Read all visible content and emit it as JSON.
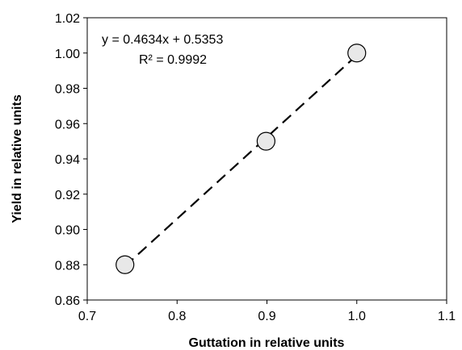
{
  "chart_data": {
    "type": "scatter",
    "xlabel": "Guttation in relative units",
    "ylabel": "Yield in relative units",
    "xlim": [
      0.7,
      1.1
    ],
    "ylim": [
      0.86,
      1.02
    ],
    "xticks": [
      "0.7",
      "0.8",
      "0.9",
      "1.0",
      "1.1"
    ],
    "yticks": [
      "0.86",
      "0.88",
      "0.90",
      "0.92",
      "0.94",
      "0.96",
      "0.98",
      "1.00",
      "1.02"
    ],
    "points": [
      {
        "x": 0.742,
        "y": 0.88
      },
      {
        "x": 0.899,
        "y": 0.95
      },
      {
        "x": 1.0,
        "y": 1.0
      }
    ],
    "trendline": {
      "slope": 0.4634,
      "intercept": 0.5353,
      "style": "dashed",
      "equation": "y = 0.4634x  + 0.5353",
      "r_squared": "R² = 0.9992"
    },
    "grid": false,
    "colors": {
      "marker_fill": "#e8e8e8",
      "marker_stroke": "#000000",
      "line": "#000000"
    }
  }
}
